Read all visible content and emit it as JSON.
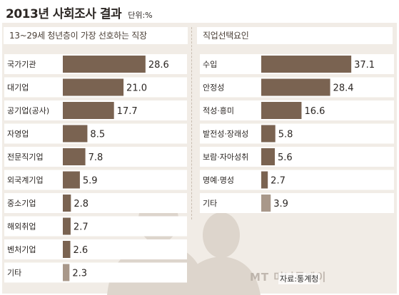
{
  "title": "2013년 사회조사 결과",
  "unit": "단위:%",
  "source": "자료:통계청",
  "watermark": "MT 머니투데이",
  "colors": {
    "bar": "#7a6351",
    "bar_light": "#a9988a",
    "panel_bg": "#f1ece6"
  },
  "chart_data": [
    {
      "type": "bar",
      "orientation": "horizontal",
      "title": "13~29세 청년층이 가장 선호하는 직장",
      "categories": [
        "국가기관",
        "대기업",
        "공기업(공사)",
        "자영업",
        "전문직기업",
        "외국계기업",
        "중소기업",
        "해외취업",
        "벤처기업",
        "기타"
      ],
      "values": [
        28.6,
        21.0,
        17.7,
        8.5,
        7.8,
        5.9,
        2.8,
        2.7,
        2.6,
        2.3
      ],
      "value_labels": [
        "28.6",
        "21.0",
        "17.7",
        "8.5",
        "7.8",
        "5.9",
        "2.8",
        "2.7",
        "2.6",
        "2.3"
      ]
    },
    {
      "type": "bar",
      "orientation": "horizontal",
      "title": "직업선택요인",
      "categories": [
        "수입",
        "안정성",
        "적성·흥미",
        "발전성·장래성",
        "보람·자아성취",
        "명예·명성",
        "기타"
      ],
      "values": [
        37.1,
        28.4,
        16.6,
        5.8,
        5.6,
        2.7,
        3.9
      ],
      "value_labels": [
        "37.1",
        "28.4",
        "16.6",
        "5.8",
        "5.6",
        "2.7",
        "3.9"
      ]
    }
  ]
}
